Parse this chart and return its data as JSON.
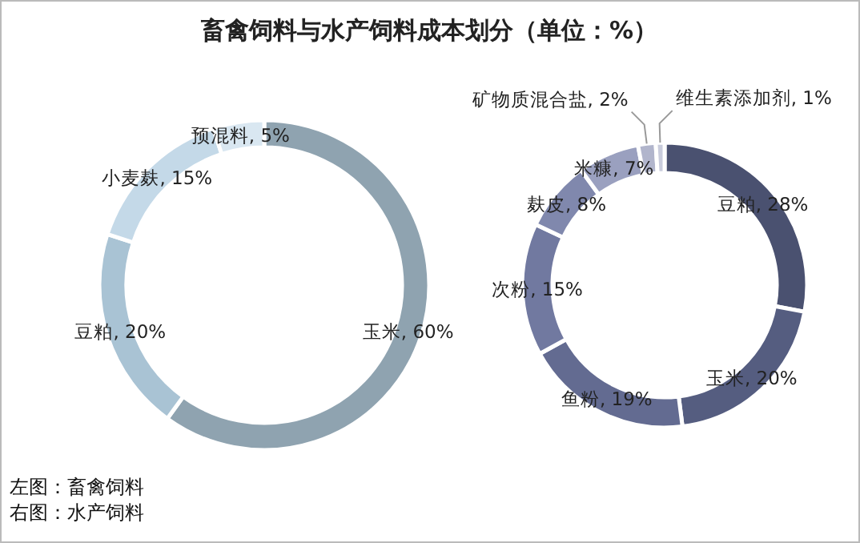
{
  "chart_data": [
    {
      "type": "donut",
      "title": "畜禽饲料与水产饲料成本划分（单位：%）",
      "categories": [
        "玉米",
        "豆粕",
        "小麦麸",
        "预混料"
      ],
      "values": [
        60,
        20,
        15,
        5
      ],
      "value_labels": [
        "60%",
        "20%",
        "15%",
        "5%"
      ],
      "colors": [
        "#8fa3b0",
        "#a9c3d4",
        "#c4d9e8",
        "#d9e7f1"
      ],
      "annotations": [
        "左图：畜禽饲料",
        "右图：水产饲料"
      ],
      "legend": false
    },
    {
      "type": "donut",
      "categories": [
        "豆粕",
        "玉米",
        "鱼粉",
        "次粉",
        "麸皮",
        "米糠",
        "矿物质混合盐",
        "维生素添加剂"
      ],
      "values": [
        28,
        20,
        19,
        15,
        8,
        7,
        2,
        1
      ],
      "value_labels": [
        "28%",
        "20%",
        "19%",
        "15%",
        "8%",
        "7%",
        "2%",
        "1%"
      ],
      "colors": [
        "#4a5170",
        "#555d80",
        "#636b91",
        "#7179a0",
        "#8088ad",
        "#9aa0bf",
        "#b1b5cc",
        "#c9ccdc"
      ],
      "legend": false
    }
  ]
}
